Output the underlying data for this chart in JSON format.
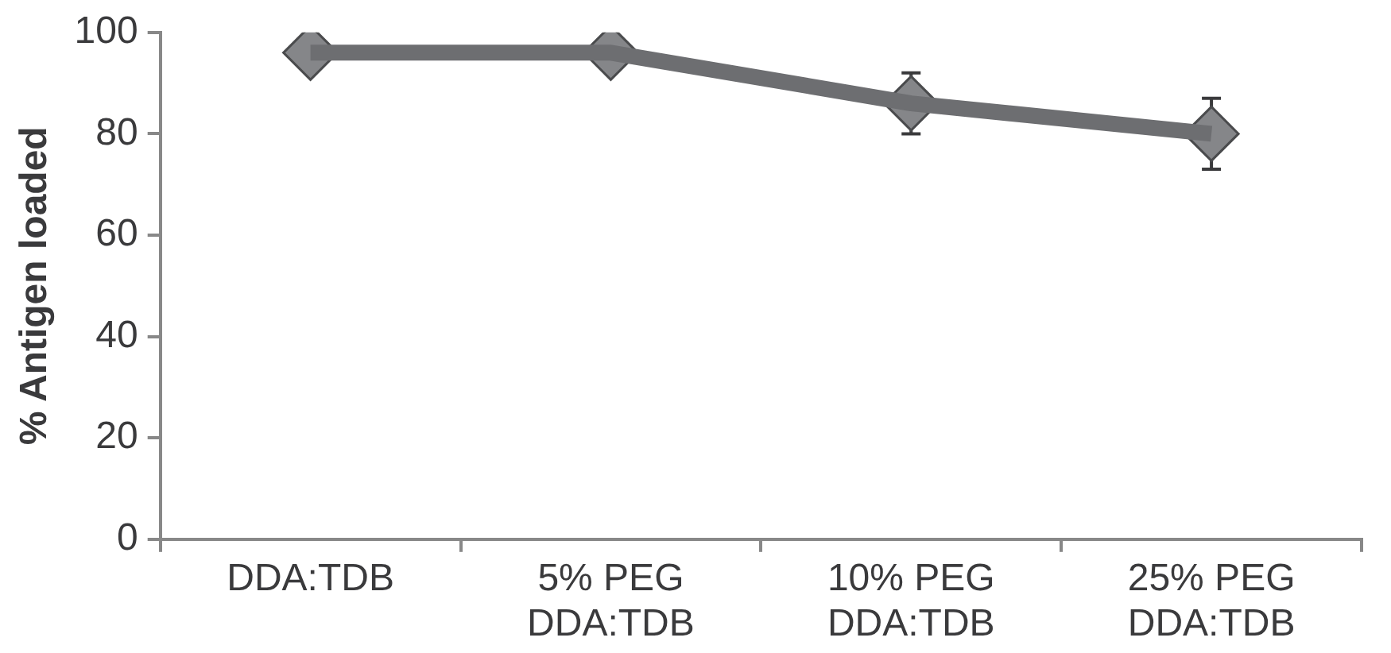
{
  "chart_data": {
    "type": "line",
    "ylabel": "% Antigen loaded",
    "categories": [
      "DDA:TDB",
      "5% PEG DDA:TDB",
      "10% PEG DDA:TDB",
      "25% PEG DDA:TDB"
    ],
    "series": [
      {
        "color": "#6d6e71",
        "values": [
          96,
          96,
          86,
          80
        ],
        "errors": [
          null,
          null,
          6,
          7
        ]
      }
    ],
    "ylim": [
      0,
      100
    ],
    "yticks": [
      0,
      20,
      40,
      60,
      80,
      100
    ],
    "grid": false,
    "legend": false,
    "marker": "diamond",
    "line_style": "solid"
  }
}
